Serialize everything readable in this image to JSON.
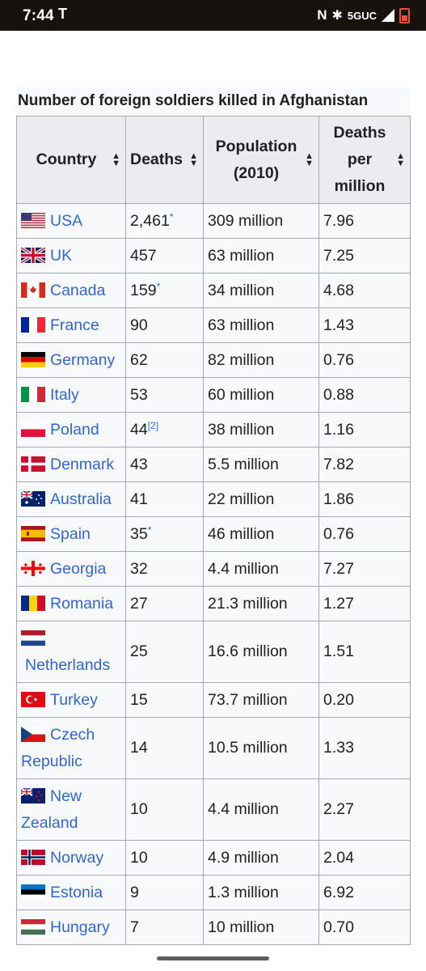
{
  "status_bar": {
    "time": "7:44",
    "carrier": "T",
    "network": "5GUC"
  },
  "table": {
    "caption": "Number of foreign soldiers killed in Afghanistan",
    "columns": [
      "Country",
      "Deaths",
      "Population (2010)",
      "Deaths per million"
    ],
    "rows": [
      {
        "country": "USA",
        "deaths": "2,461",
        "note": "*",
        "population": "309 million",
        "per_million": "7.96"
      },
      {
        "country": "UK",
        "deaths": "457",
        "note": "",
        "population": "63 million",
        "per_million": "7.25"
      },
      {
        "country": "Canada",
        "deaths": "159",
        "note": "*",
        "population": "34 million",
        "per_million": "4.68"
      },
      {
        "country": "France",
        "deaths": "90",
        "note": "",
        "population": "63 million",
        "per_million": "1.43"
      },
      {
        "country": "Germany",
        "deaths": "62",
        "note": "",
        "population": "82 million",
        "per_million": "0.76"
      },
      {
        "country": "Italy",
        "deaths": "53",
        "note": "",
        "population": "60 million",
        "per_million": "0.88"
      },
      {
        "country": "Poland",
        "deaths": "44",
        "note": "[2]",
        "population": "38 million",
        "per_million": "1.16"
      },
      {
        "country": "Denmark",
        "deaths": "43",
        "note": "",
        "population": "5.5 million",
        "per_million": "7.82"
      },
      {
        "country": "Australia",
        "deaths": "41",
        "note": "",
        "population": "22 million",
        "per_million": "1.86"
      },
      {
        "country": "Spain",
        "deaths": "35",
        "note": "*",
        "population": "46 million",
        "per_million": "0.76"
      },
      {
        "country": "Georgia",
        "deaths": "32",
        "note": "",
        "population": "4.4 million",
        "per_million": "7.27"
      },
      {
        "country": "Romania",
        "deaths": "27",
        "note": "",
        "population": "21.3 million",
        "per_million": "1.27"
      },
      {
        "country": "Netherlands",
        "deaths": "25",
        "note": "",
        "population": "16.6 million",
        "per_million": "1.51"
      },
      {
        "country": "Turkey",
        "deaths": "15",
        "note": "",
        "population": "73.7 million",
        "per_million": "0.20"
      },
      {
        "country": "Czech Republic",
        "deaths": "14",
        "note": "",
        "population": "10.5 million",
        "per_million": "1.33"
      },
      {
        "country": "New Zealand",
        "deaths": "10",
        "note": "",
        "population": "4.4 million",
        "per_million": "2.27"
      },
      {
        "country": "Norway",
        "deaths": "10",
        "note": "",
        "population": "4.9 million",
        "per_million": "2.04"
      },
      {
        "country": "Estonia",
        "deaths": "9",
        "note": "",
        "population": "1.3 million",
        "per_million": "6.92"
      },
      {
        "country": "Hungary",
        "deaths": "7",
        "note": "",
        "population": "10 million",
        "per_million": "0.70"
      }
    ]
  }
}
